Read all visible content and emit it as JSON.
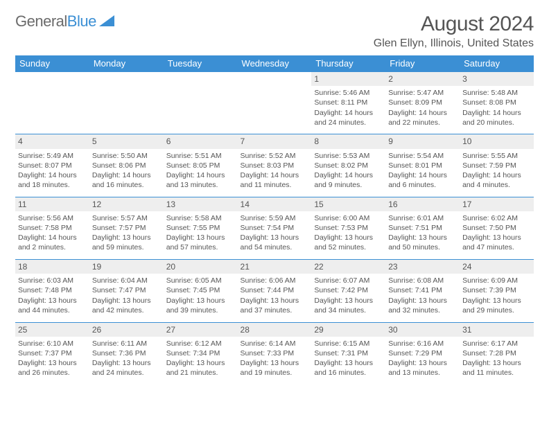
{
  "logo": {
    "text1": "General",
    "text2": "Blue"
  },
  "title": "August 2024",
  "location": "Glen Ellyn, Illinois, United States",
  "colors": {
    "header_bg": "#3b8fd4",
    "header_text": "#ffffff",
    "daynum_bg": "#eeeeee",
    "body_text": "#555555",
    "logo_gray": "#6b6b6b",
    "logo_blue": "#3b8fd4",
    "page_bg": "#ffffff"
  },
  "typography": {
    "title_fontsize": 30,
    "location_fontsize": 16,
    "dayhead_fontsize": 13,
    "daynum_fontsize": 12,
    "cell_fontsize": 10.5,
    "logo_fontsize": 22
  },
  "day_names": [
    "Sunday",
    "Monday",
    "Tuesday",
    "Wednesday",
    "Thursday",
    "Friday",
    "Saturday"
  ],
  "weeks": [
    [
      null,
      null,
      null,
      null,
      {
        "n": "1",
        "sr": "Sunrise: 5:46 AM",
        "ss": "Sunset: 8:11 PM",
        "dl": "Daylight: 14 hours and 24 minutes."
      },
      {
        "n": "2",
        "sr": "Sunrise: 5:47 AM",
        "ss": "Sunset: 8:09 PM",
        "dl": "Daylight: 14 hours and 22 minutes."
      },
      {
        "n": "3",
        "sr": "Sunrise: 5:48 AM",
        "ss": "Sunset: 8:08 PM",
        "dl": "Daylight: 14 hours and 20 minutes."
      }
    ],
    [
      {
        "n": "4",
        "sr": "Sunrise: 5:49 AM",
        "ss": "Sunset: 8:07 PM",
        "dl": "Daylight: 14 hours and 18 minutes."
      },
      {
        "n": "5",
        "sr": "Sunrise: 5:50 AM",
        "ss": "Sunset: 8:06 PM",
        "dl": "Daylight: 14 hours and 16 minutes."
      },
      {
        "n": "6",
        "sr": "Sunrise: 5:51 AM",
        "ss": "Sunset: 8:05 PM",
        "dl": "Daylight: 14 hours and 13 minutes."
      },
      {
        "n": "7",
        "sr": "Sunrise: 5:52 AM",
        "ss": "Sunset: 8:03 PM",
        "dl": "Daylight: 14 hours and 11 minutes."
      },
      {
        "n": "8",
        "sr": "Sunrise: 5:53 AM",
        "ss": "Sunset: 8:02 PM",
        "dl": "Daylight: 14 hours and 9 minutes."
      },
      {
        "n": "9",
        "sr": "Sunrise: 5:54 AM",
        "ss": "Sunset: 8:01 PM",
        "dl": "Daylight: 14 hours and 6 minutes."
      },
      {
        "n": "10",
        "sr": "Sunrise: 5:55 AM",
        "ss": "Sunset: 7:59 PM",
        "dl": "Daylight: 14 hours and 4 minutes."
      }
    ],
    [
      {
        "n": "11",
        "sr": "Sunrise: 5:56 AM",
        "ss": "Sunset: 7:58 PM",
        "dl": "Daylight: 14 hours and 2 minutes."
      },
      {
        "n": "12",
        "sr": "Sunrise: 5:57 AM",
        "ss": "Sunset: 7:57 PM",
        "dl": "Daylight: 13 hours and 59 minutes."
      },
      {
        "n": "13",
        "sr": "Sunrise: 5:58 AM",
        "ss": "Sunset: 7:55 PM",
        "dl": "Daylight: 13 hours and 57 minutes."
      },
      {
        "n": "14",
        "sr": "Sunrise: 5:59 AM",
        "ss": "Sunset: 7:54 PM",
        "dl": "Daylight: 13 hours and 54 minutes."
      },
      {
        "n": "15",
        "sr": "Sunrise: 6:00 AM",
        "ss": "Sunset: 7:53 PM",
        "dl": "Daylight: 13 hours and 52 minutes."
      },
      {
        "n": "16",
        "sr": "Sunrise: 6:01 AM",
        "ss": "Sunset: 7:51 PM",
        "dl": "Daylight: 13 hours and 50 minutes."
      },
      {
        "n": "17",
        "sr": "Sunrise: 6:02 AM",
        "ss": "Sunset: 7:50 PM",
        "dl": "Daylight: 13 hours and 47 minutes."
      }
    ],
    [
      {
        "n": "18",
        "sr": "Sunrise: 6:03 AM",
        "ss": "Sunset: 7:48 PM",
        "dl": "Daylight: 13 hours and 44 minutes."
      },
      {
        "n": "19",
        "sr": "Sunrise: 6:04 AM",
        "ss": "Sunset: 7:47 PM",
        "dl": "Daylight: 13 hours and 42 minutes."
      },
      {
        "n": "20",
        "sr": "Sunrise: 6:05 AM",
        "ss": "Sunset: 7:45 PM",
        "dl": "Daylight: 13 hours and 39 minutes."
      },
      {
        "n": "21",
        "sr": "Sunrise: 6:06 AM",
        "ss": "Sunset: 7:44 PM",
        "dl": "Daylight: 13 hours and 37 minutes."
      },
      {
        "n": "22",
        "sr": "Sunrise: 6:07 AM",
        "ss": "Sunset: 7:42 PM",
        "dl": "Daylight: 13 hours and 34 minutes."
      },
      {
        "n": "23",
        "sr": "Sunrise: 6:08 AM",
        "ss": "Sunset: 7:41 PM",
        "dl": "Daylight: 13 hours and 32 minutes."
      },
      {
        "n": "24",
        "sr": "Sunrise: 6:09 AM",
        "ss": "Sunset: 7:39 PM",
        "dl": "Daylight: 13 hours and 29 minutes."
      }
    ],
    [
      {
        "n": "25",
        "sr": "Sunrise: 6:10 AM",
        "ss": "Sunset: 7:37 PM",
        "dl": "Daylight: 13 hours and 26 minutes."
      },
      {
        "n": "26",
        "sr": "Sunrise: 6:11 AM",
        "ss": "Sunset: 7:36 PM",
        "dl": "Daylight: 13 hours and 24 minutes."
      },
      {
        "n": "27",
        "sr": "Sunrise: 6:12 AM",
        "ss": "Sunset: 7:34 PM",
        "dl": "Daylight: 13 hours and 21 minutes."
      },
      {
        "n": "28",
        "sr": "Sunrise: 6:14 AM",
        "ss": "Sunset: 7:33 PM",
        "dl": "Daylight: 13 hours and 19 minutes."
      },
      {
        "n": "29",
        "sr": "Sunrise: 6:15 AM",
        "ss": "Sunset: 7:31 PM",
        "dl": "Daylight: 13 hours and 16 minutes."
      },
      {
        "n": "30",
        "sr": "Sunrise: 6:16 AM",
        "ss": "Sunset: 7:29 PM",
        "dl": "Daylight: 13 hours and 13 minutes."
      },
      {
        "n": "31",
        "sr": "Sunrise: 6:17 AM",
        "ss": "Sunset: 7:28 PM",
        "dl": "Daylight: 13 hours and 11 minutes."
      }
    ]
  ]
}
